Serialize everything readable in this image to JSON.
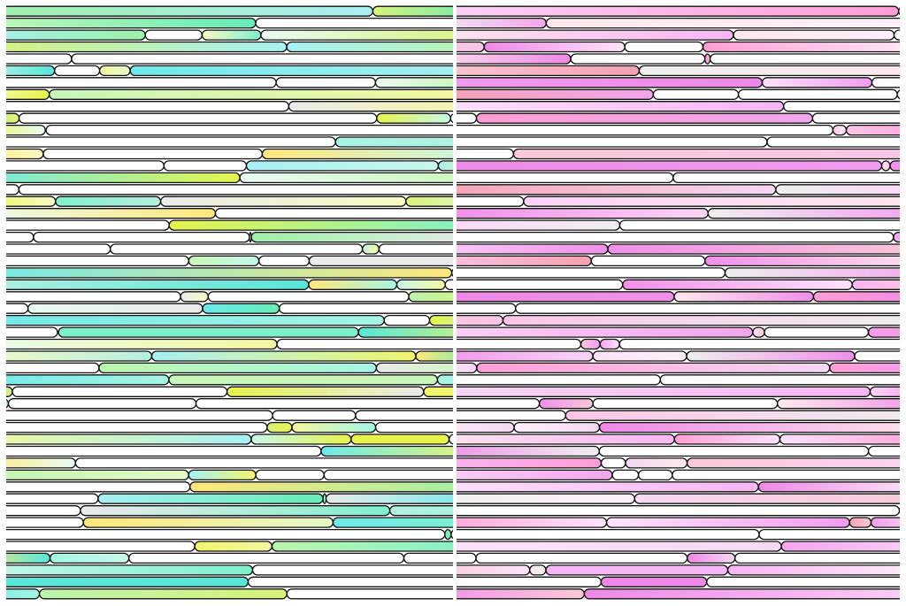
{
  "image": {
    "kind": "abstract striped pattern, two side-by-side panels",
    "background_color": "#ffffff",
    "outline_color": "#111111"
  },
  "panels": [
    {
      "name": "left",
      "palette_name": "green-cyan-yellow",
      "colors": [
        "#7ff0cc",
        "#a6f5e3",
        "#c8f7ea",
        "#e9fbf2",
        "#66ebb6",
        "#9ef0a8",
        "#bdf5ad",
        "#c9f7b9",
        "#e4f8c8",
        "#f8fbc4",
        "#f4f7a0",
        "#f0f56c",
        "#e6f44c",
        "#d8f27a",
        "#a8f0f4",
        "#6ee9ea",
        "#57e6d8",
        "#b4efe0",
        "#ffe77a",
        "#eaeaea"
      ],
      "band_rows": 50,
      "seed": 17
    },
    {
      "name": "right",
      "palette_name": "pink-magenta",
      "colors": [
        "#f7b6f4",
        "#f29cf0",
        "#fbd4f8",
        "#fde3fb",
        "#f08fe9",
        "#f2a6ec",
        "#fac6e8",
        "#f9c9d7",
        "#f6a1b1",
        "#fde8ec",
        "#ff9ed6",
        "#f5d8f3",
        "#ee88e6",
        "#fff0fb",
        "#efefef"
      ],
      "band_rows": 50,
      "seed": 41
    }
  ]
}
